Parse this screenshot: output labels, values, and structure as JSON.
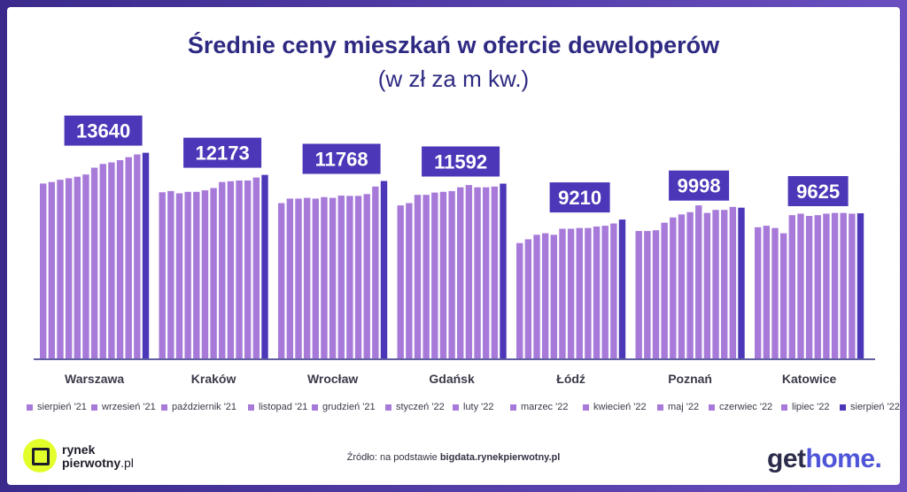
{
  "header": {
    "title": "Średnie ceny mieszkań w ofercie deweloperów",
    "subtitle": "(w zł za m kw.)"
  },
  "chart_data": {
    "type": "bar",
    "title": "Średnie ceny mieszkań w ofercie deweloperów",
    "subtitle": "(w zł za m kw.)",
    "ylim": [
      0,
      14500
    ],
    "months": [
      "sierpień '21",
      "wrzesień '21",
      "październik '21",
      "listopad '21",
      "grudzień '21",
      "styczeń '22",
      "luty '22",
      "marzec '22",
      "kwiecień '22",
      "maj '22",
      "czerwiec '22",
      "lipiec '22",
      "sierpień '22"
    ],
    "cities": [
      {
        "name": "Warszawa",
        "label": "13640",
        "values": [
          11600,
          11700,
          11850,
          11950,
          12050,
          12200,
          12650,
          12900,
          13000,
          13150,
          13350,
          13530,
          13640
        ]
      },
      {
        "name": "Kraków",
        "label": "12173",
        "values": [
          11020,
          11100,
          10950,
          11050,
          11050,
          11150,
          11300,
          11700,
          11750,
          11800,
          11800,
          12000,
          12173
        ]
      },
      {
        "name": "Wrocław",
        "label": "11768",
        "values": [
          10300,
          10600,
          10600,
          10650,
          10600,
          10700,
          10650,
          10800,
          10780,
          10780,
          10900,
          11400,
          11768
        ]
      },
      {
        "name": "Gdańsk",
        "label": "11592",
        "values": [
          10150,
          10300,
          10850,
          10850,
          11000,
          11050,
          11100,
          11350,
          11500,
          11350,
          11350,
          11400,
          11592
        ]
      },
      {
        "name": "Łódź",
        "label": "9210",
        "values": [
          7650,
          7900,
          8200,
          8300,
          8200,
          8600,
          8600,
          8650,
          8650,
          8750,
          8800,
          8950,
          9210
        ]
      },
      {
        "name": "Poznań",
        "label": "9998",
        "values": [
          8450,
          8450,
          8500,
          9000,
          9350,
          9550,
          9700,
          10150,
          9650,
          9850,
          9850,
          10050,
          9998
        ]
      },
      {
        "name": "Katowice",
        "label": "9625",
        "values": [
          8700,
          8800,
          8650,
          8300,
          9500,
          9600,
          9450,
          9500,
          9600,
          9650,
          9650,
          9600,
          9625
        ]
      }
    ],
    "colors": {
      "bar": "#a77ad9",
      "last_bar": "#4b37b8",
      "label_box": "#4b37b8",
      "label_text": "#ffffff"
    }
  },
  "legend": {
    "items": [
      "sierpień '21",
      "wrzesień '21",
      "październik '21",
      "listopad '21",
      "grudzień '21",
      "styczeń '22",
      "luty '22",
      "marzec '22",
      "kwiecień '22",
      "maj '22",
      "czerwiec '22",
      "lipiec '22",
      "sierpień '22"
    ]
  },
  "footer": {
    "logo_left_line1": "rynek",
    "logo_left_line2_bold": "pierwotny",
    "logo_left_line2_rest": ".pl",
    "source_prefix": "Źródło: na podstawie ",
    "source_bold": "bigdata.rynekpierwotny.pl",
    "logo_right_part1": "get",
    "logo_right_part2": "home."
  }
}
